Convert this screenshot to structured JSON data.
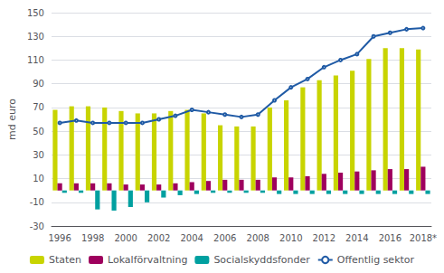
{
  "chart_data": {
    "type": "bar",
    "ylabel": "md euro",
    "categories": [
      "1996",
      null,
      "1998",
      null,
      "2000",
      null,
      "2002",
      null,
      "2004",
      null,
      "2006",
      null,
      "2008",
      null,
      "2010",
      null,
      "2012",
      null,
      "2014",
      null,
      "2016",
      null,
      "2018*"
    ],
    "series": [
      {
        "name": "Staten",
        "color": "#c8d400",
        "values": [
          68,
          71,
          71,
          70,
          67,
          65,
          65,
          67,
          68,
          65,
          55,
          54,
          54,
          70,
          76,
          87,
          93,
          97,
          101,
          111,
          120,
          120,
          119
        ]
      },
      {
        "name": "Lokalförvaltning",
        "color": "#9e005d",
        "values": [
          6,
          6,
          6,
          6,
          5,
          5,
          5,
          6,
          7,
          8,
          9,
          9,
          9,
          11,
          11,
          12,
          14,
          15,
          16,
          17,
          18,
          18,
          20
        ]
      },
      {
        "name": "Socialskyddsfonder",
        "color": "#00a0a0",
        "values": [
          -2,
          -2,
          -16,
          -17,
          -14,
          -10,
          -6,
          -4,
          -3,
          -2,
          -2,
          -2,
          -2,
          -3,
          -3,
          -3,
          -3,
          -3,
          -3,
          -3,
          -3,
          -3,
          -3
        ]
      },
      {
        "name": "Offentlig sektor",
        "type": "line",
        "color": "#1f5aa5",
        "values": [
          57,
          59,
          57,
          57,
          57,
          57,
          60,
          63,
          68,
          66,
          64,
          62,
          64,
          76,
          87,
          94,
          104,
          110,
          115,
          130,
          133,
          136,
          137
        ]
      }
    ],
    "ylim": [
      -30,
      150
    ],
    "yticks": [
      -30,
      -10,
      10,
      30,
      50,
      70,
      90,
      110,
      130,
      150
    ],
    "grid": true,
    "legend": "bottom"
  }
}
